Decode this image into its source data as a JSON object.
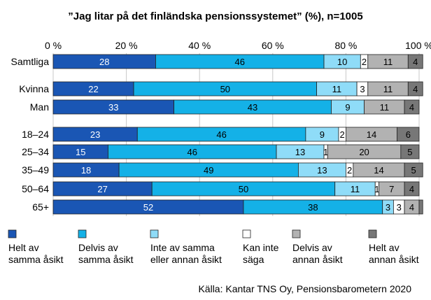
{
  "chart_data": {
    "type": "bar",
    "orientation": "horizontal",
    "stacked": true,
    "title": "”Jag litar på det finländska pensionssystemet” (%), n=1005",
    "x_ticks": [
      "0 %",
      "20 %",
      "40 %",
      "60 %",
      "80 %",
      "100 %"
    ],
    "xlim": [
      0,
      100
    ],
    "grid": "vertical",
    "legend_position": "bottom",
    "categories": [
      "Samtliga",
      "Kvinna",
      "Man",
      "18–24",
      "25–34",
      "35–49",
      "50–64",
      "65+"
    ],
    "series": [
      {
        "name": "Helt av samma åsikt",
        "color": "#1a56b4",
        "label_color": "#ffffff",
        "values": [
          28,
          22,
          33,
          23,
          15,
          18,
          27,
          52
        ]
      },
      {
        "name": "Delvis av samma åsikt",
        "color": "#14b1e7",
        "label_color": "#000000",
        "values": [
          46,
          50,
          43,
          46,
          46,
          49,
          50,
          38
        ]
      },
      {
        "name": "Inte av samma eller annan åsikt",
        "color": "#8fdcf8",
        "label_color": "#000000",
        "values": [
          10,
          11,
          9,
          9,
          13,
          13,
          11,
          3
        ]
      },
      {
        "name": "Kan inte säga",
        "color": "#ffffff",
        "label_color": "#000000",
        "values": [
          2,
          3,
          0,
          2,
          1,
          2,
          1,
          3
        ]
      },
      {
        "name": "Delvis av annan åsikt",
        "color": "#b2b2b2",
        "label_color": "#000000",
        "values": [
          11,
          11,
          11,
          14,
          20,
          14,
          7,
          4
        ]
      },
      {
        "name": "Helt av annan åsikt",
        "color": "#777777",
        "label_color": "#000000",
        "values": [
          4,
          4,
          4,
          6,
          5,
          5,
          4,
          1
        ]
      }
    ],
    "value_labels": [
      [
        "28",
        "46",
        "10",
        "2",
        "11",
        "4"
      ],
      [
        "22",
        "50",
        "11",
        "3",
        "11",
        "4"
      ],
      [
        "33",
        "43",
        "9",
        "",
        "11",
        "4"
      ],
      [
        "23",
        "46",
        "9",
        "2",
        "14",
        "6"
      ],
      [
        "15",
        "46",
        "13",
        "1",
        "20",
        "5"
      ],
      [
        "18",
        "49",
        "13",
        "2",
        "14",
        "5"
      ],
      [
        "27",
        "50",
        "11",
        "1",
        "7",
        "4"
      ],
      [
        "52",
        "38",
        "3",
        "3",
        "4",
        ""
      ]
    ],
    "legend_labels": [
      [
        "Helt av",
        "samma åsikt"
      ],
      [
        "Delvis av",
        "samma åsikt"
      ],
      [
        "Inte av samma",
        "eller annan åsikt"
      ],
      [
        "Kan inte",
        "säga"
      ],
      [
        "Delvis av",
        "annan åsikt"
      ],
      [
        "Helt av",
        "annan åsikt"
      ]
    ],
    "source": "Källa: Kantar TNS Oy, Pensionsbarometern 2020"
  }
}
